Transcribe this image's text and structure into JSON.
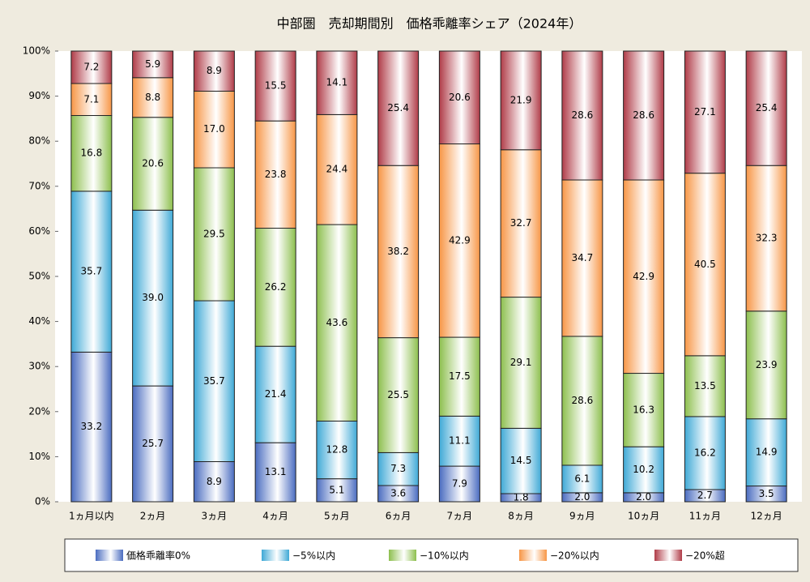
{
  "chart_data": {
    "type": "stacked_bar",
    "title": "中部圏　売却期間別　価格乖離率シェア（2024年）",
    "categories": [
      "1ヵ月以内",
      "2ヵ月",
      "3ヵ月",
      "4ヵ月",
      "5ヵ月",
      "6ヵ月",
      "7ヵ月",
      "8ヵ月",
      "9ヵ月",
      "10ヵ月",
      "11ヵ月",
      "12ヵ月"
    ],
    "series": [
      {
        "name": "価格乖離率0%",
        "color": "#4a6cc0",
        "values": [
          33.2,
          25.7,
          8.9,
          13.1,
          5.1,
          3.6,
          7.9,
          1.8,
          2.0,
          2.0,
          2.7,
          3.5
        ],
        "value_labels": [
          "33.2",
          "25.7",
          "8.9",
          "13.1",
          "5.1",
          "3.6",
          "7.9",
          "1.8",
          "2.0",
          "2.0",
          "2.7",
          "3.5"
        ]
      },
      {
        "name": "−5%以内",
        "color": "#3fa9d6",
        "values": [
          35.7,
          39.0,
          35.7,
          21.4,
          12.8,
          7.3,
          11.1,
          14.5,
          6.1,
          10.2,
          16.2,
          14.9
        ],
        "value_labels": [
          "35.7",
          "39.0",
          "35.7",
          "21.4",
          "12.8",
          "7.3",
          "11.1",
          "14.5",
          "6.1",
          "10.2",
          "16.2",
          "14.9"
        ]
      },
      {
        "name": "−10%以内",
        "color": "#8dbf4e",
        "values": [
          16.8,
          20.6,
          29.5,
          26.2,
          43.6,
          25.5,
          17.5,
          29.1,
          28.6,
          16.3,
          13.5,
          23.9
        ],
        "value_labels": [
          "16.8",
          "20.6",
          "29.5",
          "26.2",
          "43.6",
          "25.5",
          "17.5",
          "29.1",
          "28.6",
          "16.3",
          "13.5",
          "23.9"
        ]
      },
      {
        "name": "−20%以内",
        "color": "#f79646",
        "values": [
          7.1,
          8.8,
          17.0,
          23.8,
          24.4,
          38.2,
          42.9,
          32.7,
          34.7,
          42.9,
          40.5,
          32.3
        ],
        "value_labels": [
          "7.1",
          "8.8",
          "17.0",
          "23.8",
          "24.4",
          "38.2",
          "42.9",
          "32.7",
          "34.7",
          "42.9",
          "40.5",
          "32.3"
        ]
      },
      {
        "name": "−20%超",
        "color": "#b03c48",
        "values": [
          7.2,
          5.9,
          8.9,
          15.5,
          14.1,
          25.4,
          20.6,
          21.9,
          28.6,
          28.6,
          27.1,
          25.4
        ],
        "value_labels": [
          "7.2",
          "5.9",
          "8.9",
          "15.5",
          "14.1",
          "25.4",
          "20.6",
          "21.9",
          "28.6",
          "28.6",
          "27.1",
          "25.4"
        ]
      }
    ],
    "ylim": [
      0,
      100
    ],
    "yticks": [
      {
        "value": 0,
        "label": "0%"
      },
      {
        "value": 10,
        "label": "10%"
      },
      {
        "value": 20,
        "label": "20%"
      },
      {
        "value": 30,
        "label": "30%"
      },
      {
        "value": 40,
        "label": "40%"
      },
      {
        "value": 50,
        "label": "50%"
      },
      {
        "value": 60,
        "label": "60%"
      },
      {
        "value": 70,
        "label": "70%"
      },
      {
        "value": 80,
        "label": "80%"
      },
      {
        "value": 90,
        "label": "90%"
      },
      {
        "value": 100,
        "label": "100%"
      }
    ]
  }
}
